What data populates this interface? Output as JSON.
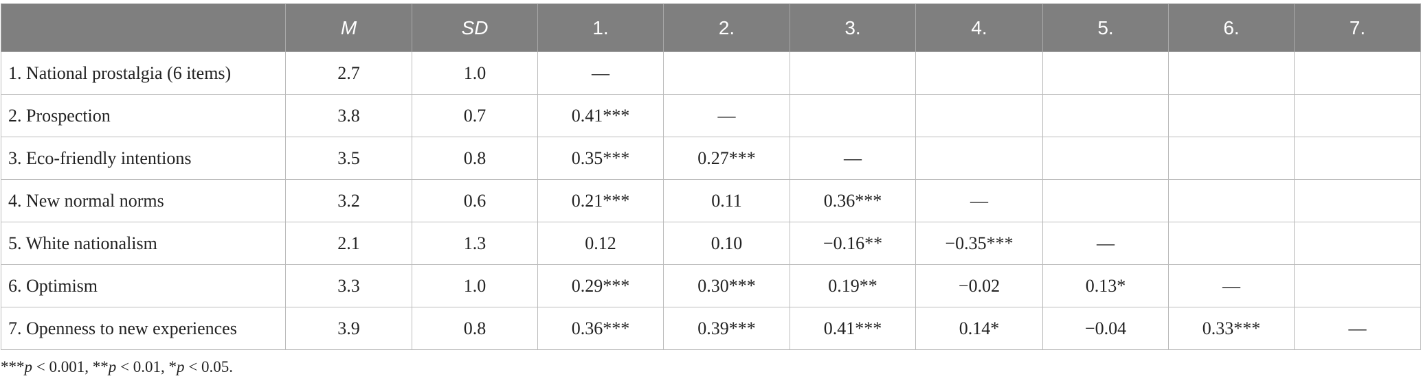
{
  "table": {
    "header": [
      null,
      "M",
      "SD",
      "1.",
      "2.",
      "3.",
      "4.",
      "5.",
      "6.",
      "7."
    ],
    "rows": [
      [
        "1. National prostalgia (6 items)",
        "2.7",
        "1.0",
        "—",
        null,
        null,
        null,
        null,
        null,
        null
      ],
      [
        "2. Prospection",
        "3.8",
        "0.7",
        "0.41***",
        "—",
        null,
        null,
        null,
        null,
        null
      ],
      [
        "3. Eco-friendly intentions",
        "3.5",
        "0.8",
        "0.35***",
        "0.27***",
        "—",
        null,
        null,
        null,
        null
      ],
      [
        "4. New normal norms",
        "3.2",
        "0.6",
        "0.21***",
        "0.11",
        "0.36***",
        "—",
        null,
        null,
        null
      ],
      [
        "5. White nationalism",
        "2.1",
        "1.3",
        "0.12",
        "0.10",
        "−0.16**",
        "−0.35***",
        "—",
        null,
        null
      ],
      [
        "6. Optimism",
        "3.3",
        "1.0",
        "0.29***",
        "0.30***",
        "0.19**",
        "−0.02",
        "0.13*",
        "—",
        null
      ],
      [
        "7. Openness to new experiences",
        "3.9",
        "0.8",
        "0.36***",
        "0.39***",
        "0.41***",
        "0.14*",
        "−0.04",
        "0.33***",
        "—"
      ]
    ],
    "footnote": [
      "***",
      "p",
      " < 0.001, **",
      "p",
      " < 0.01, *",
      "p",
      " < 0.05."
    ]
  }
}
